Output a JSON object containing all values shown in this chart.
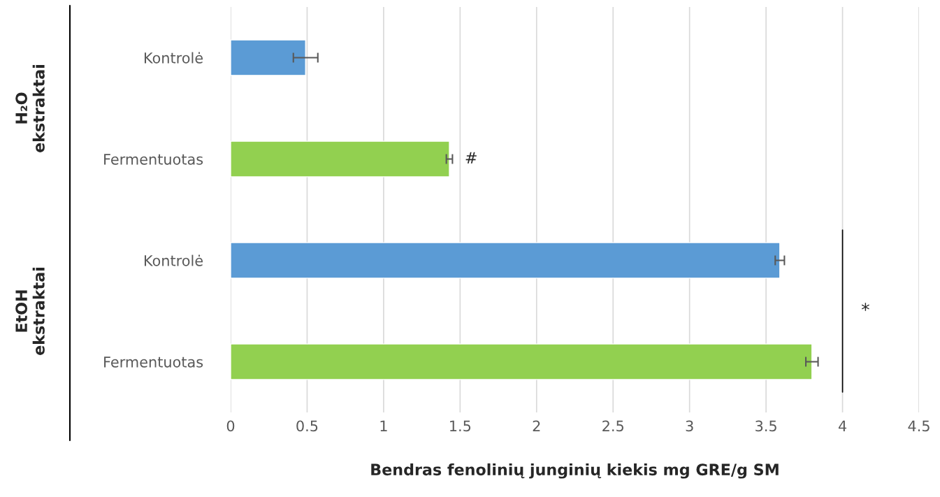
{
  "chart_data": {
    "type": "bar",
    "orientation": "horizontal",
    "categories": [
      "Kontrolė",
      "Fermentuotas",
      "Kontrolė",
      "Fermentuotas"
    ],
    "values": [
      0.49,
      1.43,
      3.59,
      3.8
    ],
    "errors": [
      0.08,
      0.02,
      0.03,
      0.04
    ],
    "colors": [
      "#5b9bd5",
      "#92d050",
      "#5b9bd5",
      "#92d050"
    ],
    "xlabel": "Bendras fenolinių junginių kiekis mg GRE/g SM",
    "xlim": [
      0,
      4.5
    ],
    "xticks": [
      0,
      0.5,
      1,
      1.5,
      2,
      2.5,
      3,
      3.5,
      4,
      4.5
    ],
    "grid": "x",
    "annotations": [
      "H₂O\nekstraktai",
      "EtOH\nekstraktai",
      "#",
      "*"
    ]
  }
}
